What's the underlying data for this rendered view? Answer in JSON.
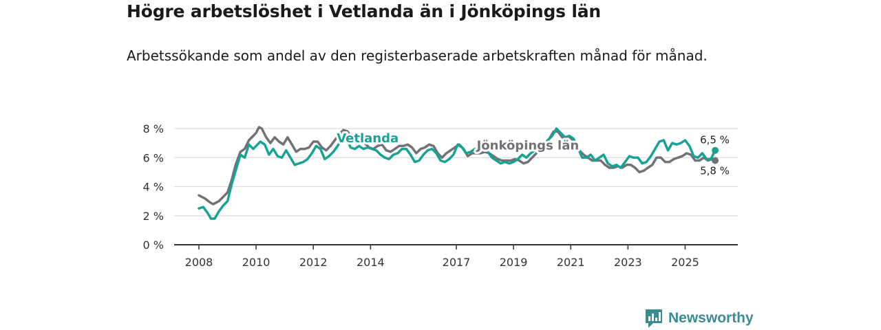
{
  "header": {
    "title": "Högre arbetslöshet i Vetlanda än i Jönköpings län",
    "subtitle": "Arbetssökande som andel av den registerbaserade arbetskraften månad för månad."
  },
  "brand": {
    "name": "Newsworthy"
  },
  "colors": {
    "vetlanda": "#17a294",
    "lan": "#727176",
    "grid": "#dddddd",
    "axis": "#333333"
  },
  "chart_data": {
    "type": "line",
    "title": "Högre arbetslöshet i Vetlanda än i Jönköpings län",
    "subtitle": "Arbetssökande som andel av den registerbaserade arbetskraften månad för månad.",
    "xlabel": "",
    "ylabel": "",
    "xlim": [
      2007.9,
      2027.0
    ],
    "ylim": [
      0,
      8
    ],
    "grid": true,
    "x_ticks": [
      2008,
      2010,
      2012,
      2014,
      2017,
      2019,
      2021,
      2023,
      2025
    ],
    "x_tick_labels": [
      "2008",
      "2010",
      "2012",
      "2014",
      "2017",
      "2019",
      "2021",
      "2023",
      "2025"
    ],
    "y_ticks": [
      0,
      2,
      4,
      6,
      8
    ],
    "y_tick_labels": [
      "0 %",
      "2 %",
      "4 %",
      "6 %",
      "8 %"
    ],
    "series": [
      {
        "name": "Jönköpings län",
        "color": "#727176",
        "end_label": "5,8 %",
        "points": [
          [
            2008.0,
            3.4
          ],
          [
            2008.2,
            3.2
          ],
          [
            2008.4,
            2.9
          ],
          [
            2008.5,
            2.8
          ],
          [
            2008.7,
            3.0
          ],
          [
            2008.85,
            3.3
          ],
          [
            2009.0,
            3.6
          ],
          [
            2009.15,
            4.5
          ],
          [
            2009.3,
            5.6
          ],
          [
            2009.45,
            6.4
          ],
          [
            2009.6,
            6.6
          ],
          [
            2009.75,
            7.2
          ],
          [
            2009.9,
            7.5
          ],
          [
            2010.0,
            7.7
          ],
          [
            2010.1,
            8.1
          ],
          [
            2010.2,
            8.0
          ],
          [
            2010.35,
            7.4
          ],
          [
            2010.5,
            7.0
          ],
          [
            2010.65,
            7.4
          ],
          [
            2010.8,
            7.1
          ],
          [
            2010.95,
            6.9
          ],
          [
            2011.1,
            7.4
          ],
          [
            2011.25,
            6.9
          ],
          [
            2011.4,
            6.4
          ],
          [
            2011.55,
            6.6
          ],
          [
            2011.7,
            6.6
          ],
          [
            2011.85,
            6.7
          ],
          [
            2012.0,
            7.1
          ],
          [
            2012.15,
            7.1
          ],
          [
            2012.3,
            6.7
          ],
          [
            2012.45,
            6.5
          ],
          [
            2012.6,
            6.8
          ],
          [
            2012.75,
            7.2
          ],
          [
            2012.9,
            7.6
          ],
          [
            2013.05,
            7.9
          ],
          [
            2013.2,
            7.8
          ],
          [
            2013.35,
            7.3
          ],
          [
            2013.5,
            7.0
          ],
          [
            2013.65,
            7.1
          ],
          [
            2013.8,
            7.0
          ],
          [
            2013.95,
            6.7
          ],
          [
            2014.1,
            6.6
          ],
          [
            2014.25,
            6.8
          ],
          [
            2014.4,
            6.9
          ],
          [
            2014.55,
            6.5
          ],
          [
            2014.7,
            6.4
          ],
          [
            2014.85,
            6.6
          ],
          [
            2015.0,
            6.8
          ],
          [
            2015.15,
            6.8
          ],
          [
            2015.3,
            6.9
          ],
          [
            2015.45,
            6.7
          ],
          [
            2015.6,
            6.3
          ],
          [
            2015.75,
            6.6
          ],
          [
            2015.9,
            6.7
          ],
          [
            2016.05,
            6.9
          ],
          [
            2016.2,
            6.8
          ],
          [
            2016.35,
            6.3
          ],
          [
            2016.5,
            6.0
          ],
          [
            2016.65,
            6.3
          ],
          [
            2016.8,
            6.5
          ],
          [
            2016.95,
            6.7
          ],
          [
            2017.1,
            6.9
          ],
          [
            2017.25,
            6.6
          ],
          [
            2017.4,
            6.1
          ],
          [
            2017.55,
            6.3
          ],
          [
            2017.7,
            6.3
          ],
          [
            2017.85,
            6.3
          ],
          [
            2018.0,
            6.4
          ],
          [
            2018.15,
            6.3
          ],
          [
            2018.3,
            6.1
          ],
          [
            2018.45,
            5.9
          ],
          [
            2018.6,
            5.8
          ],
          [
            2018.75,
            5.8
          ],
          [
            2018.9,
            5.8
          ],
          [
            2019.05,
            5.9
          ],
          [
            2019.2,
            5.8
          ],
          [
            2019.35,
            5.6
          ],
          [
            2019.5,
            5.7
          ],
          [
            2019.65,
            6.0
          ],
          [
            2019.8,
            6.3
          ],
          [
            2019.95,
            6.6
          ],
          [
            2020.1,
            7.0
          ],
          [
            2020.25,
            7.3
          ],
          [
            2020.4,
            7.8
          ],
          [
            2020.55,
            7.8
          ],
          [
            2020.7,
            7.4
          ],
          [
            2020.85,
            7.2
          ],
          [
            2021.0,
            7.4
          ],
          [
            2021.15,
            6.9
          ],
          [
            2021.3,
            6.5
          ],
          [
            2021.45,
            6.2
          ],
          [
            2021.6,
            6.0
          ],
          [
            2021.75,
            5.8
          ],
          [
            2021.9,
            5.8
          ],
          [
            2022.05,
            5.8
          ],
          [
            2022.2,
            5.5
          ],
          [
            2022.35,
            5.3
          ],
          [
            2022.5,
            5.3
          ],
          [
            2022.65,
            5.4
          ],
          [
            2022.8,
            5.3
          ],
          [
            2022.95,
            5.5
          ],
          [
            2023.1,
            5.5
          ],
          [
            2023.25,
            5.3
          ],
          [
            2023.4,
            5.0
          ],
          [
            2023.55,
            5.1
          ],
          [
            2023.7,
            5.3
          ],
          [
            2023.85,
            5.5
          ],
          [
            2024.0,
            6.0
          ],
          [
            2024.15,
            6.0
          ],
          [
            2024.3,
            5.7
          ],
          [
            2024.45,
            5.7
          ],
          [
            2024.6,
            5.9
          ],
          [
            2024.75,
            6.0
          ],
          [
            2024.9,
            6.1
          ],
          [
            2025.05,
            6.3
          ],
          [
            2025.2,
            6.2
          ],
          [
            2025.35,
            5.8
          ],
          [
            2025.5,
            5.8
          ],
          [
            2025.65,
            6.0
          ],
          [
            2025.8,
            5.8
          ],
          [
            2025.95,
            5.9
          ],
          [
            2026.05,
            5.8
          ]
        ]
      },
      {
        "name": "Vetlanda",
        "color": "#17a294",
        "end_label": "6,5 %",
        "points": [
          [
            2008.0,
            2.5
          ],
          [
            2008.15,
            2.6
          ],
          [
            2008.3,
            2.2
          ],
          [
            2008.42,
            1.8
          ],
          [
            2008.55,
            1.8
          ],
          [
            2008.7,
            2.3
          ],
          [
            2008.85,
            2.7
          ],
          [
            2009.0,
            3.0
          ],
          [
            2009.15,
            4.2
          ],
          [
            2009.3,
            5.2
          ],
          [
            2009.45,
            6.2
          ],
          [
            2009.6,
            6.0
          ],
          [
            2009.75,
            6.9
          ],
          [
            2009.9,
            6.6
          ],
          [
            2010.0,
            6.8
          ],
          [
            2010.15,
            7.1
          ],
          [
            2010.3,
            6.9
          ],
          [
            2010.45,
            6.2
          ],
          [
            2010.6,
            6.6
          ],
          [
            2010.75,
            6.1
          ],
          [
            2010.9,
            6.0
          ],
          [
            2011.05,
            6.5
          ],
          [
            2011.2,
            6.0
          ],
          [
            2011.35,
            5.5
          ],
          [
            2011.5,
            5.6
          ],
          [
            2011.65,
            5.7
          ],
          [
            2011.8,
            5.9
          ],
          [
            2011.95,
            6.3
          ],
          [
            2012.1,
            6.8
          ],
          [
            2012.25,
            6.6
          ],
          [
            2012.4,
            5.9
          ],
          [
            2012.55,
            6.1
          ],
          [
            2012.7,
            6.4
          ],
          [
            2012.85,
            6.8
          ],
          [
            2013.0,
            7.3
          ],
          [
            2013.15,
            7.5
          ],
          [
            2013.3,
            6.7
          ],
          [
            2013.45,
            6.6
          ],
          [
            2013.6,
            6.8
          ],
          [
            2013.75,
            6.6
          ],
          [
            2013.9,
            6.7
          ],
          [
            2014.05,
            6.6
          ],
          [
            2014.2,
            6.5
          ],
          [
            2014.35,
            6.2
          ],
          [
            2014.5,
            6.0
          ],
          [
            2014.65,
            5.9
          ],
          [
            2014.8,
            6.2
          ],
          [
            2014.95,
            6.3
          ],
          [
            2015.1,
            6.6
          ],
          [
            2015.25,
            6.6
          ],
          [
            2015.4,
            6.2
          ],
          [
            2015.55,
            5.7
          ],
          [
            2015.7,
            5.8
          ],
          [
            2015.85,
            6.2
          ],
          [
            2016.0,
            6.5
          ],
          [
            2016.15,
            6.6
          ],
          [
            2016.3,
            6.3
          ],
          [
            2016.45,
            5.8
          ],
          [
            2016.6,
            5.7
          ],
          [
            2016.75,
            5.9
          ],
          [
            2016.9,
            6.2
          ],
          [
            2017.05,
            6.9
          ],
          [
            2017.2,
            6.7
          ],
          [
            2017.35,
            6.3
          ],
          [
            2017.5,
            6.4
          ],
          [
            2017.65,
            6.6
          ],
          [
            2017.8,
            6.5
          ],
          [
            2017.95,
            6.6
          ],
          [
            2018.1,
            6.4
          ],
          [
            2018.25,
            6.0
          ],
          [
            2018.4,
            5.8
          ],
          [
            2018.55,
            5.6
          ],
          [
            2018.7,
            5.7
          ],
          [
            2018.85,
            5.6
          ],
          [
            2019.0,
            5.7
          ],
          [
            2019.15,
            5.9
          ],
          [
            2019.3,
            6.2
          ],
          [
            2019.45,
            6.0
          ],
          [
            2019.6,
            6.3
          ],
          [
            2019.75,
            6.5
          ],
          [
            2019.9,
            6.7
          ],
          [
            2020.05,
            6.9
          ],
          [
            2020.2,
            7.2
          ],
          [
            2020.35,
            7.5
          ],
          [
            2020.5,
            8.0
          ],
          [
            2020.65,
            7.7
          ],
          [
            2020.8,
            7.4
          ],
          [
            2020.95,
            7.5
          ],
          [
            2021.1,
            7.3
          ],
          [
            2021.25,
            6.7
          ],
          [
            2021.4,
            6.0
          ],
          [
            2021.55,
            6.0
          ],
          [
            2021.7,
            6.2
          ],
          [
            2021.85,
            5.8
          ],
          [
            2022.0,
            6.0
          ],
          [
            2022.15,
            6.2
          ],
          [
            2022.3,
            5.6
          ],
          [
            2022.45,
            5.4
          ],
          [
            2022.6,
            5.5
          ],
          [
            2022.75,
            5.3
          ],
          [
            2022.9,
            5.7
          ],
          [
            2023.05,
            6.1
          ],
          [
            2023.2,
            6.0
          ],
          [
            2023.35,
            6.0
          ],
          [
            2023.5,
            5.6
          ],
          [
            2023.65,
            5.7
          ],
          [
            2023.8,
            6.1
          ],
          [
            2023.95,
            6.6
          ],
          [
            2024.1,
            7.1
          ],
          [
            2024.25,
            7.2
          ],
          [
            2024.4,
            6.5
          ],
          [
            2024.55,
            7.0
          ],
          [
            2024.7,
            6.9
          ],
          [
            2024.85,
            7.0
          ],
          [
            2025.0,
            7.2
          ],
          [
            2025.15,
            6.8
          ],
          [
            2025.3,
            6.1
          ],
          [
            2025.45,
            6.0
          ],
          [
            2025.6,
            6.3
          ],
          [
            2025.75,
            5.9
          ],
          [
            2025.9,
            5.9
          ],
          [
            2026.05,
            6.5
          ]
        ]
      }
    ],
    "annotations": [
      {
        "text": "Vetlanda",
        "series": "Vetlanda",
        "x": 2013.9,
        "y": 7.05
      },
      {
        "text": "Jönköpings län",
        "series": "Jönköpings län",
        "x": 2019.5,
        "y": 6.55
      }
    ]
  }
}
